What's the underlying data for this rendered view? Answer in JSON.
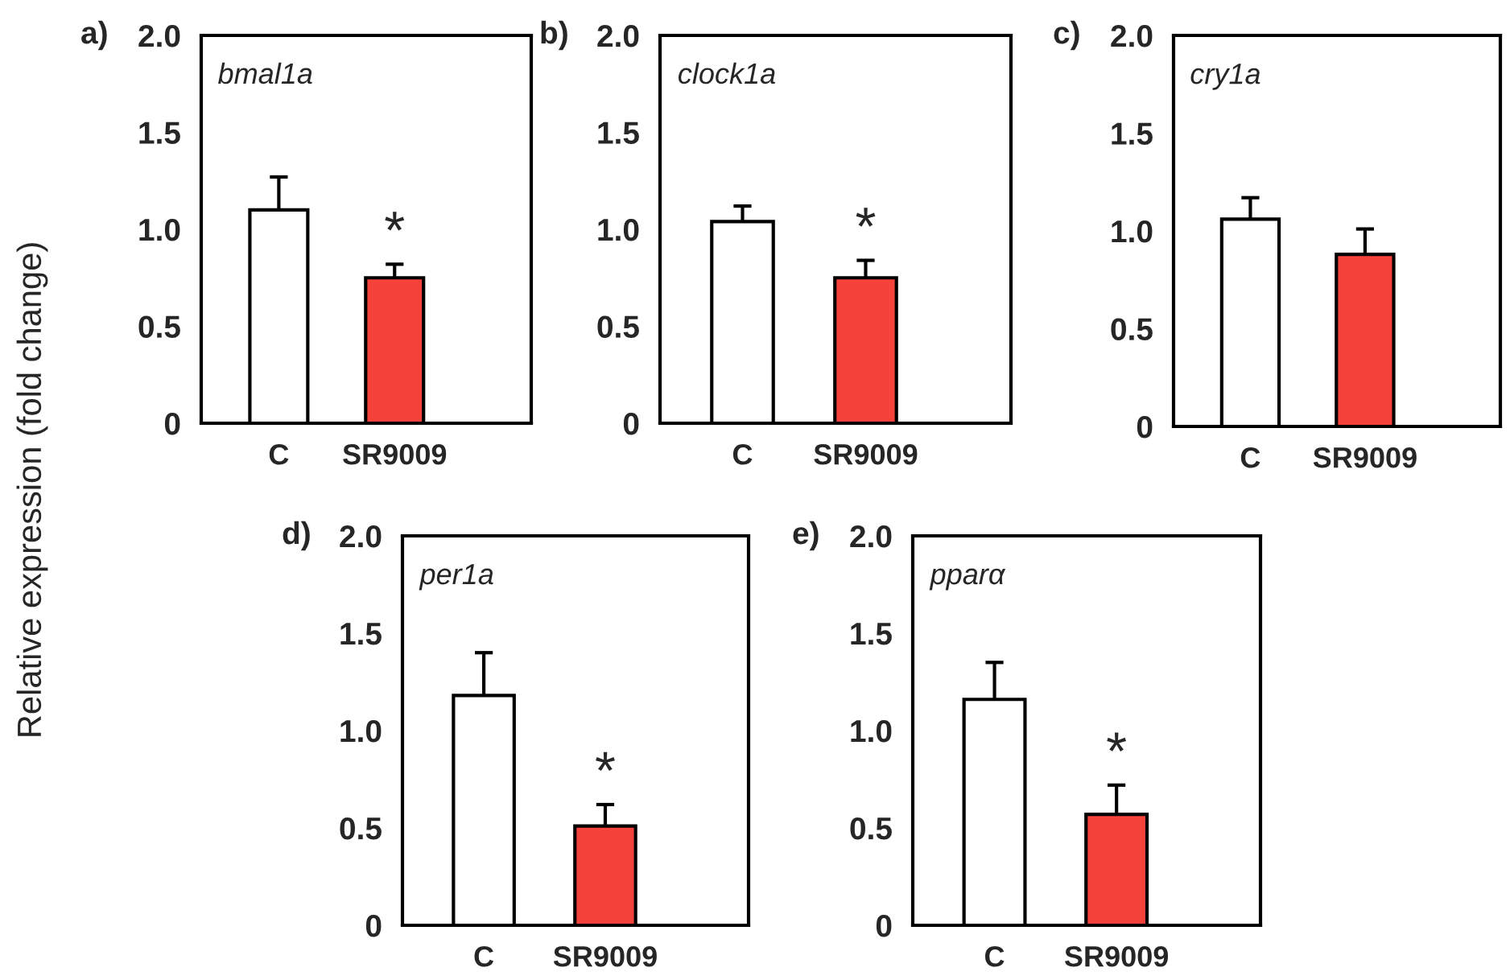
{
  "chart_data": [
    {
      "type": "bar",
      "title": "bmal1a",
      "ylabel": "Relative expression (fold change)",
      "categories": [
        "C",
        "SR9009"
      ],
      "values": [
        1.1,
        0.75
      ],
      "colors": [
        "#ffffff",
        "#f5433b"
      ],
      "errors": [
        0.17,
        0.07
      ],
      "ylim": [
        0,
        2
      ],
      "yticks": [
        0,
        {
          "value": 0.5,
          "label": "0.5"
        },
        {
          "value": 1,
          "label": "1.0"
        },
        {
          "value": 1.5,
          "label": "1.5"
        },
        {
          "value": 2,
          "label": "2.0"
        }
      ],
      "annotations": [
        "a)",
        {
          "text": "*",
          "x": "SR9009",
          "y": 0.82
        }
      ]
    },
    {
      "type": "bar",
      "title": "clock1a",
      "categories": [
        "C",
        "SR9009"
      ],
      "values": [
        1.04,
        0.75
      ],
      "colors": [
        "#ffffff",
        "#f5433b"
      ],
      "errors": [
        0.08,
        0.09
      ],
      "ylim": [
        0,
        2
      ],
      "yticks": [
        0,
        {
          "value": 0.5,
          "label": "0.5"
        },
        {
          "value": 1,
          "label": "1.0"
        },
        {
          "value": 1.5,
          "label": "1.5"
        },
        {
          "value": 2,
          "label": "2.0"
        }
      ],
      "annotations": [
        "b)",
        {
          "text": "*",
          "x": "SR9009",
          "y": 0.84
        }
      ]
    },
    {
      "type": "bar",
      "title": "cry1a",
      "categories": [
        "C",
        "SR9009"
      ],
      "values": [
        1.06,
        0.88
      ],
      "colors": [
        "#ffffff",
        "#f5433b"
      ],
      "errors": [
        0.11,
        0.13
      ],
      "ylim": [
        0,
        2
      ],
      "yticks": [
        0,
        {
          "value": 0.5,
          "label": "0.5"
        },
        {
          "value": 1,
          "label": "1.0"
        },
        {
          "value": 1.5,
          "label": "1.5"
        },
        {
          "value": 2,
          "label": "2.0"
        }
      ],
      "annotations": [
        "c)"
      ]
    },
    {
      "type": "bar",
      "title": "per1a",
      "categories": [
        "C",
        "SR9009"
      ],
      "values": [
        1.18,
        0.51
      ],
      "colors": [
        "#ffffff",
        "#f5433b"
      ],
      "errors": [
        0.22,
        0.11
      ],
      "ylim": [
        0,
        2
      ],
      "yticks": [
        0,
        {
          "value": 0.5,
          "label": "0.5"
        },
        {
          "value": 1,
          "label": "1.0"
        },
        {
          "value": 1.5,
          "label": "1.5"
        },
        {
          "value": 2,
          "label": "2.0"
        }
      ],
      "annotations": [
        "d)",
        {
          "text": "*",
          "x": "SR9009",
          "y": 0.62
        }
      ]
    },
    {
      "type": "bar",
      "title": "pparα",
      "categories": [
        "C",
        "SR9009"
      ],
      "values": [
        1.16,
        0.57
      ],
      "colors": [
        "#ffffff",
        "#f5433b"
      ],
      "errors": [
        0.19,
        0.15
      ],
      "ylim": [
        0,
        2
      ],
      "yticks": [
        0,
        {
          "value": 0.5,
          "label": "0.5"
        },
        {
          "value": 1,
          "label": "1.0"
        },
        {
          "value": 1.5,
          "label": "1.5"
        },
        {
          "value": 2,
          "label": "2.0"
        }
      ],
      "annotations": [
        "e)",
        {
          "text": "*",
          "x": "SR9009",
          "y": 0.72
        }
      ]
    }
  ]
}
